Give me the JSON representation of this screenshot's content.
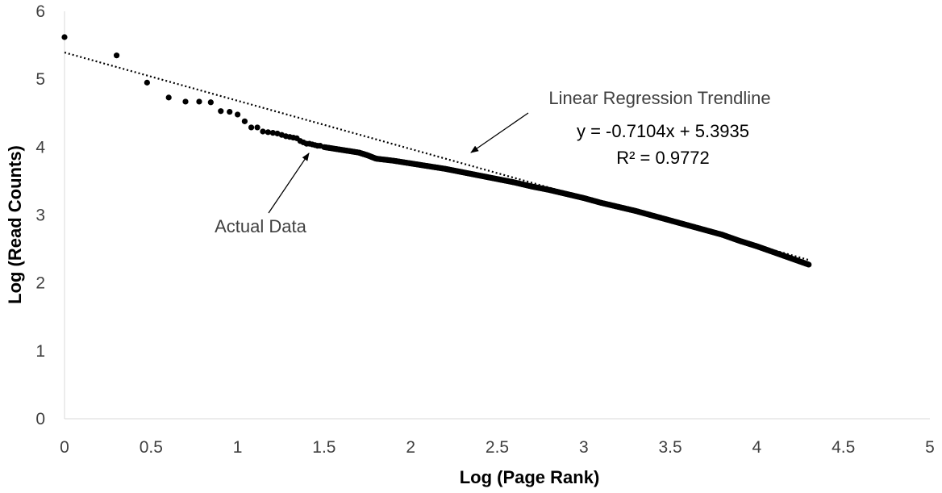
{
  "chart_data": {
    "type": "scatter",
    "title": "",
    "xlabel": "Log (Page Rank)",
    "ylabel": "Log (Read Counts)",
    "xlim": [
      0,
      5
    ],
    "ylim": [
      0,
      6
    ],
    "x_ticks": [
      "0",
      "0.5",
      "1",
      "1.5",
      "2",
      "2.5",
      "3",
      "3.5",
      "4",
      "4.5",
      "5"
    ],
    "y_ticks": [
      "0",
      "1",
      "2",
      "3",
      "4",
      "5",
      "6"
    ],
    "grid": false,
    "legend": "none",
    "colors": {
      "points": "#000000",
      "trendline": "#000000",
      "annotation_text": "#404040"
    },
    "series": [
      {
        "values_discrete": [
          [
            0.0,
            5.62
          ],
          [
            0.301,
            5.35
          ],
          [
            0.477,
            4.95
          ],
          [
            0.602,
            4.73
          ],
          [
            0.699,
            4.67
          ],
          [
            0.778,
            4.67
          ],
          [
            0.845,
            4.66
          ],
          [
            0.903,
            4.53
          ],
          [
            0.954,
            4.52
          ],
          [
            1.0,
            4.48
          ],
          [
            1.041,
            4.38
          ],
          [
            1.079,
            4.29
          ],
          [
            1.114,
            4.29
          ],
          [
            1.146,
            4.23
          ],
          [
            1.176,
            4.22
          ],
          [
            1.204,
            4.21
          ],
          [
            1.23,
            4.2
          ],
          [
            1.255,
            4.18
          ],
          [
            1.279,
            4.16
          ],
          [
            1.301,
            4.15
          ],
          [
            1.322,
            4.14
          ],
          [
            1.342,
            4.13
          ],
          [
            1.362,
            4.09
          ],
          [
            1.38,
            4.07
          ],
          [
            1.398,
            4.05
          ],
          [
            1.415,
            4.05
          ],
          [
            1.431,
            4.04
          ],
          [
            1.447,
            4.03
          ],
          [
            1.462,
            4.02
          ],
          [
            1.477,
            4.02
          ]
        ],
        "values_curve": [
          [
            1.5,
            4.0
          ],
          [
            1.6,
            3.96
          ],
          [
            1.7,
            3.92
          ],
          [
            1.75,
            3.88
          ],
          [
            1.8,
            3.83
          ],
          [
            1.9,
            3.8
          ],
          [
            2.0,
            3.76
          ],
          [
            2.1,
            3.72
          ],
          [
            2.2,
            3.68
          ],
          [
            2.3,
            3.63
          ],
          [
            2.4,
            3.58
          ],
          [
            2.5,
            3.53
          ],
          [
            2.6,
            3.48
          ],
          [
            2.7,
            3.42
          ],
          [
            2.8,
            3.37
          ],
          [
            2.9,
            3.31
          ],
          [
            3.0,
            3.25
          ],
          [
            3.1,
            3.18
          ],
          [
            3.2,
            3.12
          ],
          [
            3.3,
            3.06
          ],
          [
            3.4,
            2.99
          ],
          [
            3.5,
            2.92
          ],
          [
            3.6,
            2.85
          ],
          [
            3.7,
            2.78
          ],
          [
            3.8,
            2.71
          ],
          [
            3.9,
            2.62
          ],
          [
            4.0,
            2.54
          ],
          [
            4.1,
            2.45
          ],
          [
            4.2,
            2.36
          ],
          [
            4.3,
            2.27
          ]
        ]
      }
    ],
    "trendline": {
      "type": "linear",
      "slope": -0.7104,
      "intercept": 5.3935,
      "x_range": [
        0,
        4.3
      ],
      "label": "Linear Regression Trendline",
      "equation": "y = -0.7104x + 5.3935",
      "r_squared": "R² = 0.9772"
    },
    "annotations": [
      {
        "text": "Actual Data"
      }
    ]
  }
}
